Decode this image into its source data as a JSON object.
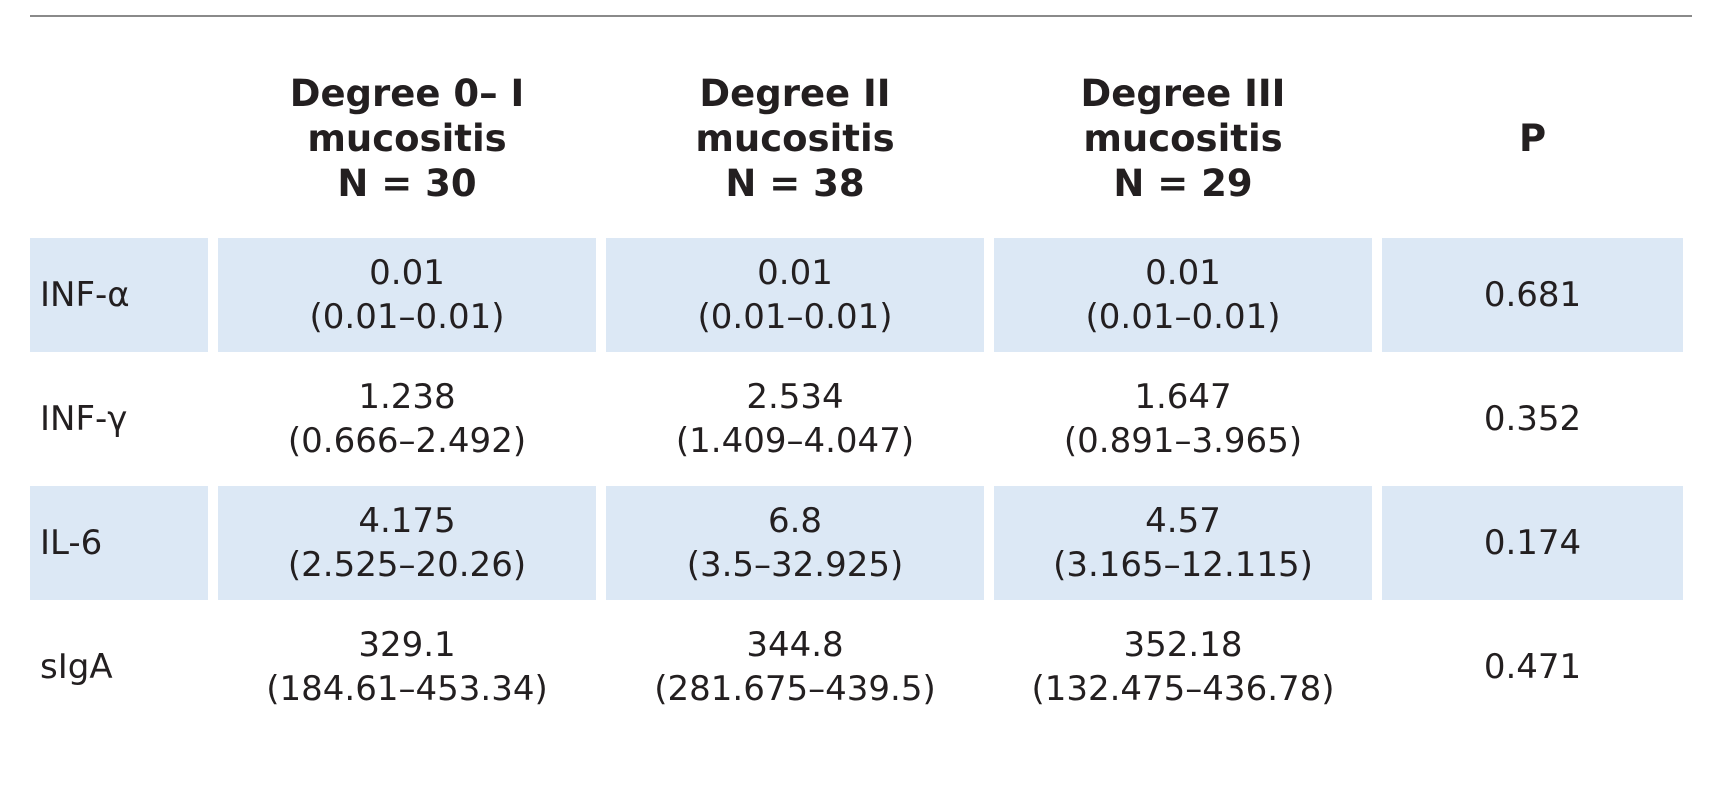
{
  "table": {
    "header": {
      "label": "",
      "groups": [
        {
          "line1": "Degree 0– I",
          "line2": "mucositis",
          "line3": "N = 30"
        },
        {
          "line1": "Degree II",
          "line2": "mucositis",
          "line3": "N = 38"
        },
        {
          "line1": "Degree III",
          "line2": "mucositis",
          "line3": "N = 29"
        }
      ],
      "p": "P"
    },
    "rows": [
      {
        "label": "INF-α",
        "cells": [
          {
            "median": "0.01",
            "range": "(0.01–0.01)"
          },
          {
            "median": "0.01",
            "range": "(0.01–0.01)"
          },
          {
            "median": "0.01",
            "range": "(0.01–0.01)"
          }
        ],
        "p": "0.681"
      },
      {
        "label": "INF-γ",
        "cells": [
          {
            "median": "1.238",
            "range": "(0.666–2.492)"
          },
          {
            "median": "2.534",
            "range": "(1.409–4.047)"
          },
          {
            "median": "1.647",
            "range": "(0.891–3.965)"
          }
        ],
        "p": "0.352"
      },
      {
        "label": "IL-6",
        "cells": [
          {
            "median": "4.175",
            "range": "(2.525–20.26)"
          },
          {
            "median": "6.8",
            "range": "(3.5–32.925)"
          },
          {
            "median": "4.57",
            "range": "(3.165–12.115)"
          }
        ],
        "p": "0.174"
      },
      {
        "label": "sIgA",
        "cells": [
          {
            "median": "329.1",
            "range": "(184.61–453.34)"
          },
          {
            "median": "344.8",
            "range": "(281.675–439.5)"
          },
          {
            "median": "352.18",
            "range": "(132.475–436.78)"
          }
        ],
        "p": "0.471"
      }
    ]
  },
  "colors": {
    "row_shade": "#dce8f5",
    "rule": "#8a8a8a",
    "text": "#231f20"
  }
}
